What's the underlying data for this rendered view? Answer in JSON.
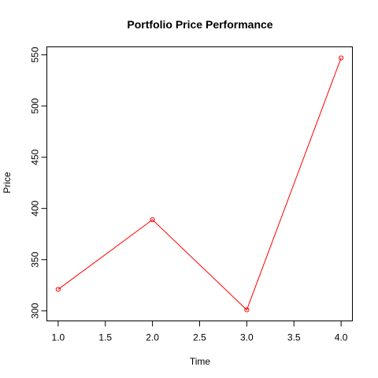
{
  "chart_data": {
    "type": "line",
    "title": "Portfolio Price Performance",
    "xlabel": "Time",
    "ylabel": "Price",
    "x": [
      1,
      2,
      3,
      4
    ],
    "series": [
      {
        "values": [
          321,
          389,
          301,
          547
        ],
        "color": "#ff0000"
      }
    ],
    "xlim": [
      0.88,
      4.12
    ],
    "ylim": [
      290.2,
      557.8
    ],
    "x_ticks": [
      "1.0",
      "1.5",
      "2.0",
      "2.5",
      "3.0",
      "3.5",
      "4.0"
    ],
    "y_ticks": [
      "300",
      "350",
      "400",
      "450",
      "500",
      "550"
    ],
    "grid": false,
    "legend": "none",
    "markers": "open-circle"
  }
}
